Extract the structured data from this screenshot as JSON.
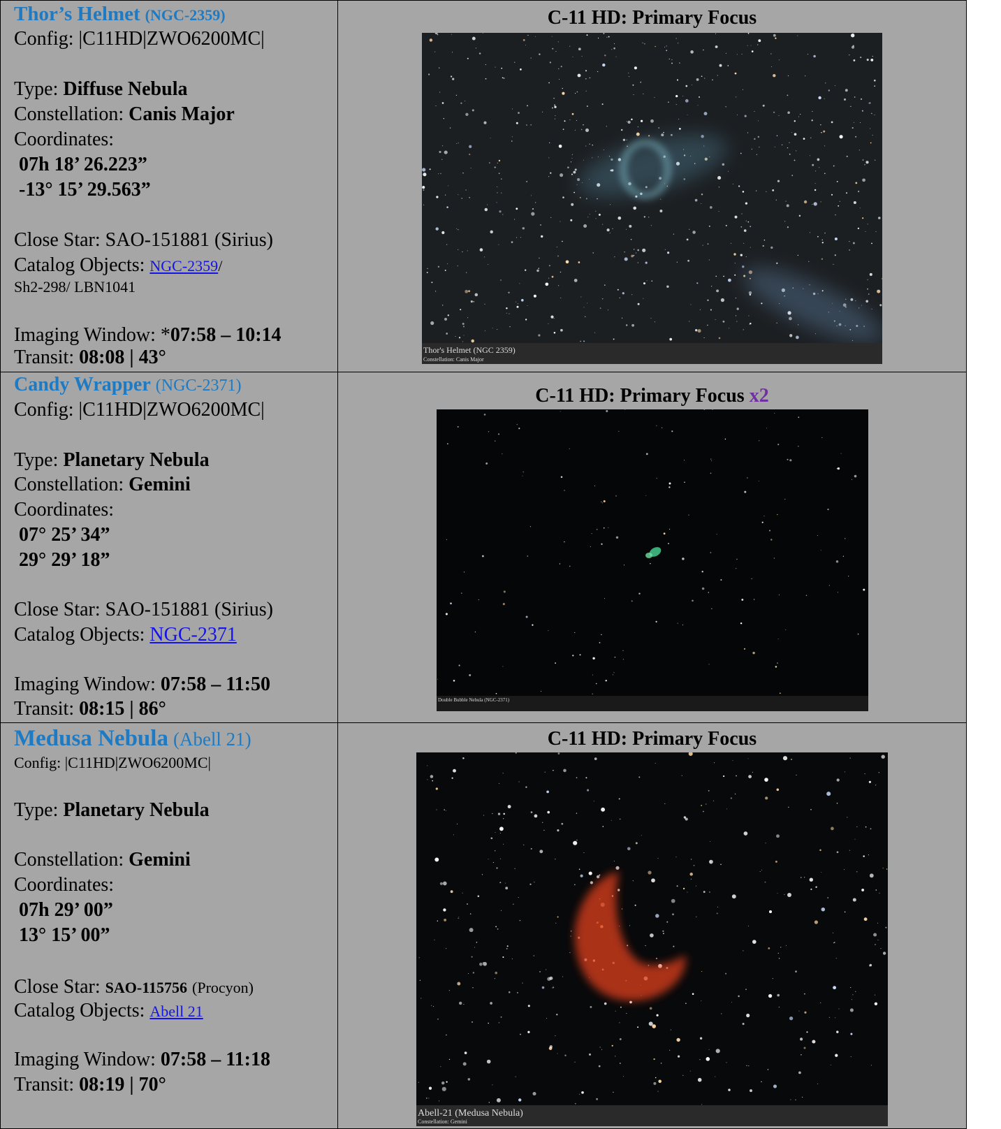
{
  "rows": [
    {
      "title": "Thor’s Helmet",
      "title_note": "(NGC-2359)",
      "config": "Config: |C11HD|ZWO6200MC|",
      "type_label": "Type:",
      "type": "Diffuse Nebula",
      "constellation_label": "Constellation:",
      "constellation": "Canis Major",
      "coordinates_label": "Coordinates:",
      "ra": "07h 18’ 26.223”",
      "dec": "-13° 15’ 29.563”",
      "close_star_label": "Close Star:",
      "close_star": "SAO-151881 (Sirius)",
      "catalog_label": "Catalog Objects:",
      "catalog_link": "NGC-2359",
      "catalog_sep": "/",
      "catalog_extra": "Sh2-298/ LBN1041",
      "window_label": "Imaging Window:",
      "window_mark": "*",
      "window": "07:58 – 10:14",
      "transit_label": "Transit:",
      "transit": "08:08 | 43°",
      "heading": "C-11 HD: Primary Focus",
      "image_caption": "Thor's Helmet (NGC 2359)",
      "image_subcaption": "Constellation: Canis Major"
    },
    {
      "title": "Candy Wrapper",
      "title_note": "(NGC-2371)",
      "config": "Config: |C11HD|ZWO6200MC|",
      "type_label": "Type:",
      "type": "Planetary Nebula",
      "constellation_label": "Constellation:",
      "constellation": "Gemini",
      "coordinates_label": "Coordinates:",
      "ra": "07° 25’ 34”",
      "dec": "29° 29’ 18”",
      "close_star_label": "Close Star:",
      "close_star": "SAO-151881 (Sirius)",
      "catalog_label": "Catalog Objects:",
      "catalog_link": "NGC-2371",
      "window_label": "Imaging Window:",
      "window": "07:58 – 11:50",
      "transit_label": "Transit:",
      "transit": "08:15 | 86°",
      "heading": "C-11 HD: Primary Focus",
      "heading_note": "x2",
      "image_caption": "Double Bubble Nebula (NGC-2371)"
    },
    {
      "title": "Medusa Nebula",
      "title_note": "(Abell 21)",
      "config": "Config: |C11HD|ZWO6200MC|",
      "type_label": "Type:",
      "type": "Planetary Nebula",
      "constellation_label": "Constellation:",
      "constellation": "Gemini",
      "coordinates_label": "Coordinates:",
      "ra": "07h 29’ 00”",
      "dec": "13° 15’ 00”",
      "close_star_label": "Close Star:",
      "close_star_id": "SAO-115756",
      "close_star": "(Procyon)",
      "catalog_label": "Catalog Objects:",
      "catalog_link": "Abell 21",
      "window_label": "Imaging Window:",
      "window": "07:58 – 11:18",
      "transit_label": "Transit:",
      "transit": "08:19 | 70°",
      "heading": "C-11 HD: Primary Focus",
      "image_caption": "Abell-21 (Medusa Nebula)",
      "image_subcaption": "Constellation: Gemini"
    }
  ]
}
